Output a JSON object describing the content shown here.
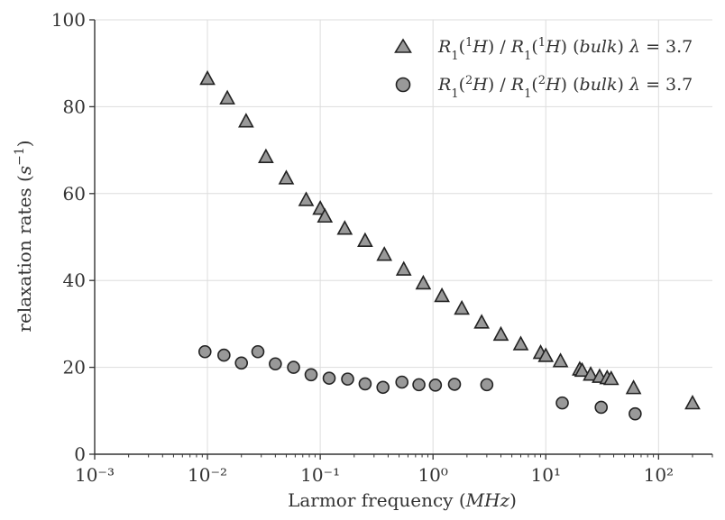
{
  "chart_data": {
    "type": "scatter",
    "title": "",
    "xlabel": "Larmor frequency (MHz)",
    "ylabel": "relaxation rates (s⁻¹)",
    "xscale": "log",
    "xlim": [
      0.001,
      300
    ],
    "ylim": [
      0,
      100
    ],
    "grid": true,
    "legend_position": "top-right",
    "x_ticks": [
      0.001,
      0.01,
      0.1,
      1,
      10,
      100
    ],
    "x_tick_labels": [
      "10⁻³",
      "10⁻²",
      "10⁻¹",
      "10⁰",
      "10¹",
      "10²"
    ],
    "y_ticks": [
      0,
      20,
      40,
      60,
      80,
      100
    ],
    "y_tick_labels": [
      "0",
      "20",
      "40",
      "60",
      "80",
      "100"
    ],
    "marker_color": "#999999",
    "marker_edge_color": "#222222",
    "series": [
      {
        "name": "R₁(¹H) / R₁(¹H) (bulk) λ = 3.7",
        "marker": "triangle",
        "x": [
          0.01,
          0.015,
          0.022,
          0.033,
          0.05,
          0.075,
          0.1,
          0.11,
          0.165,
          0.25,
          0.37,
          0.55,
          0.82,
          1.2,
          1.8,
          2.7,
          4.0,
          6.0,
          9.0,
          10.0,
          13.5,
          20.0,
          21.0,
          25.0,
          30.0,
          35.0,
          38.0,
          60.0,
          200.0
        ],
        "y": [
          86.5,
          82.0,
          76.7,
          68.5,
          63.6,
          58.6,
          56.6,
          54.8,
          52.0,
          49.2,
          46.0,
          42.6,
          39.4,
          36.5,
          33.6,
          30.4,
          27.6,
          25.4,
          23.4,
          22.7,
          21.5,
          19.6,
          19.3,
          18.4,
          17.9,
          17.6,
          17.4,
          15.3,
          11.8
        ]
      },
      {
        "name": "R₁(²H) / R₁(²H) (bulk) λ = 3.7",
        "marker": "circle",
        "x": [
          0.0095,
          0.014,
          0.02,
          0.028,
          0.04,
          0.058,
          0.083,
          0.12,
          0.175,
          0.25,
          0.36,
          0.53,
          0.75,
          1.05,
          1.55,
          3.0,
          14.0,
          31.0,
          62.0
        ],
        "y": [
          23.6,
          22.8,
          21.0,
          23.6,
          20.8,
          20.0,
          18.3,
          17.5,
          17.3,
          16.2,
          15.4,
          16.6,
          16.0,
          15.9,
          16.1,
          16.0,
          11.8,
          10.8,
          9.3
        ]
      }
    ]
  }
}
